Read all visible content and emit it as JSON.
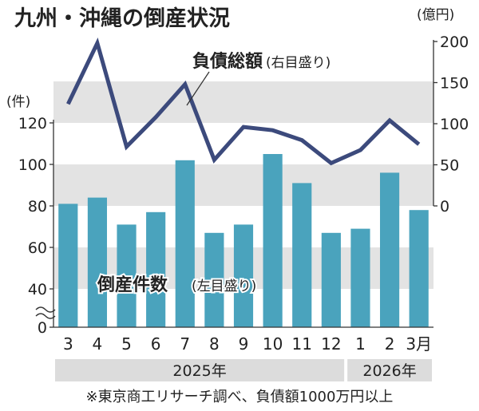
{
  "chart_data": {
    "type": "bar",
    "title": "九州・沖縄の倒産状況",
    "left_axis_unit": "(件)",
    "right_axis_unit": "(億円)",
    "categories": [
      "3",
      "4",
      "5",
      "6",
      "7",
      "8",
      "9",
      "10",
      "11",
      "12",
      "1",
      "2",
      "3月"
    ],
    "year_groups": [
      {
        "label": "2025年",
        "first": 0,
        "last": 9
      },
      {
        "label": "2026年",
        "first": 10,
        "last": 12
      }
    ],
    "left_ticks": [
      "0",
      "40",
      "60",
      "80",
      "100",
      "120"
    ],
    "right_ticks": [
      "0",
      "50",
      "100",
      "150",
      "200"
    ],
    "series": [
      {
        "name": "倒産件数",
        "name_note": "(左目盛り)",
        "axis": "left",
        "kind": "bar",
        "color": "#4aa3bd",
        "values": [
          81,
          84,
          71,
          77,
          102,
          67,
          71,
          105,
          91,
          67,
          69,
          96,
          78
        ]
      },
      {
        "name": "負債総額",
        "name_note": "(右目盛り)",
        "axis": "right",
        "kind": "line",
        "color": "#3c4a7c",
        "values": [
          124,
          198,
          72,
          108,
          148,
          56,
          96,
          92,
          80,
          52,
          68,
          104,
          75
        ]
      }
    ],
    "left_ylim": [
      0,
      120
    ],
    "left_axis_break": true,
    "right_ylim": [
      0,
      200
    ],
    "grid": "horizontal bands"
  },
  "footnote": "※東京商工リサーチ調べ、負債額1000万円以上"
}
